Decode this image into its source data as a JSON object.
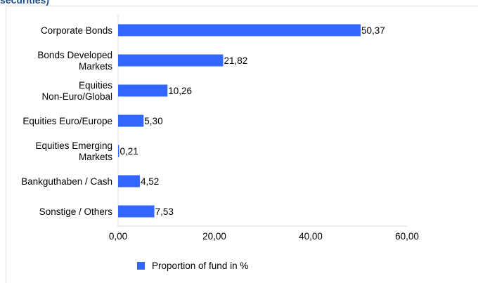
{
  "heading_fragment": "securities)",
  "colors": {
    "bar": "#3366ff",
    "axis": "#d9d9d9",
    "heading": "#1c4f8a"
  },
  "chart_data": {
    "type": "bar",
    "orientation": "horizontal",
    "categories": [
      [
        "Corporate Bonds"
      ],
      [
        "Bonds Developed",
        "Markets"
      ],
      [
        "Equities",
        "Non-Euro/Global"
      ],
      [
        "Equities Euro/Europe"
      ],
      [
        "Equities Emerging",
        "Markets"
      ],
      [
        "Bankguthaben / Cash"
      ],
      [
        "Sonstige / Others"
      ]
    ],
    "series": [
      {
        "name": "Proportion of fund in %",
        "values": [
          50.37,
          21.82,
          10.26,
          5.3,
          0.21,
          4.52,
          7.53
        ],
        "value_labels": [
          "50,37",
          "21,82",
          "10,26",
          "5,30",
          "0,21",
          "4,52",
          "7,53"
        ]
      }
    ],
    "xlim": [
      0,
      60
    ],
    "x_ticks": [
      0,
      20,
      40,
      60
    ],
    "x_tick_labels": [
      "0,00",
      "20,00",
      "40,00",
      "60,00"
    ],
    "title": "",
    "xlabel": "",
    "ylabel": "",
    "grid": false,
    "legend_position": "bottom"
  }
}
